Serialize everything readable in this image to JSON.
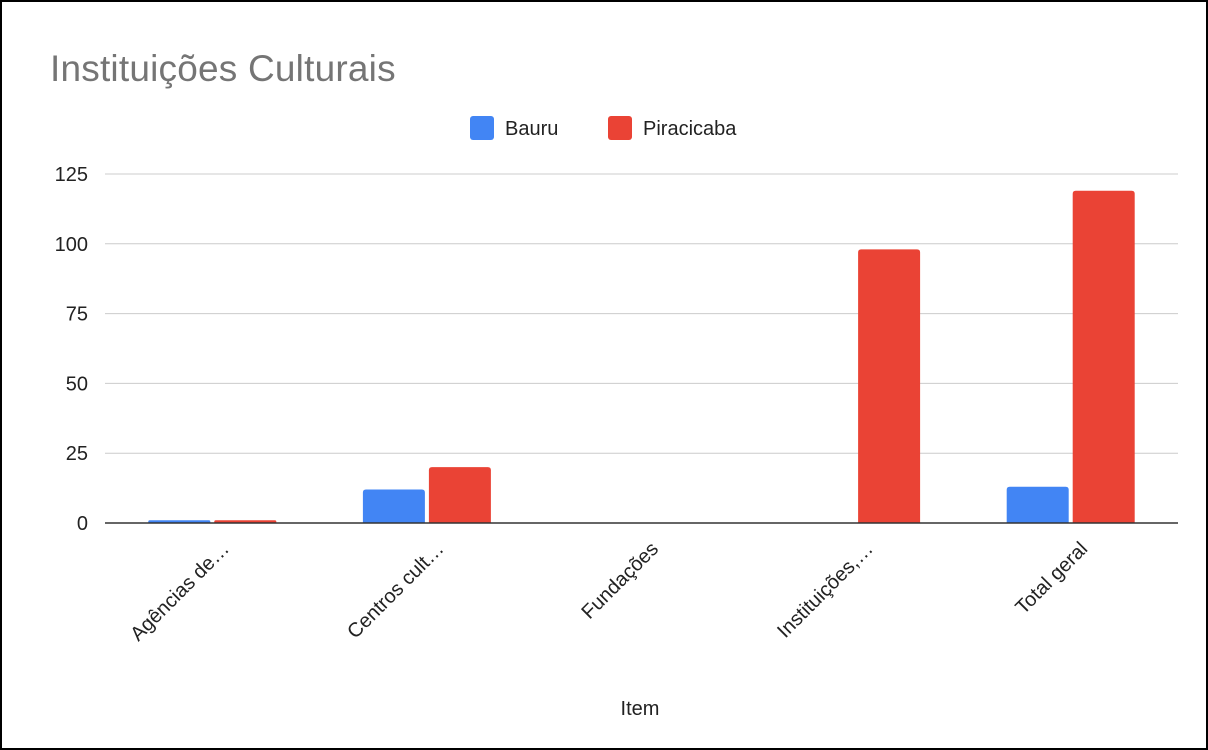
{
  "chart_data": {
    "type": "bar",
    "title": "Instituições Culturais",
    "xlabel": "Item",
    "ylabel": "",
    "ylim": [
      0,
      125
    ],
    "yticks": [
      0,
      25,
      50,
      75,
      100,
      125
    ],
    "grid": true,
    "legend_position": "top",
    "categories": [
      "Agências de…",
      "Centros cult…",
      "Fundações",
      "Instituições,…",
      "Total geral"
    ],
    "series": [
      {
        "name": "Bauru",
        "color": "#4285f4",
        "values": [
          1,
          12,
          0,
          0,
          13
        ]
      },
      {
        "name": "Piracicaba",
        "color": "#ea4335",
        "values": [
          1,
          20,
          0,
          98,
          119
        ]
      }
    ]
  }
}
